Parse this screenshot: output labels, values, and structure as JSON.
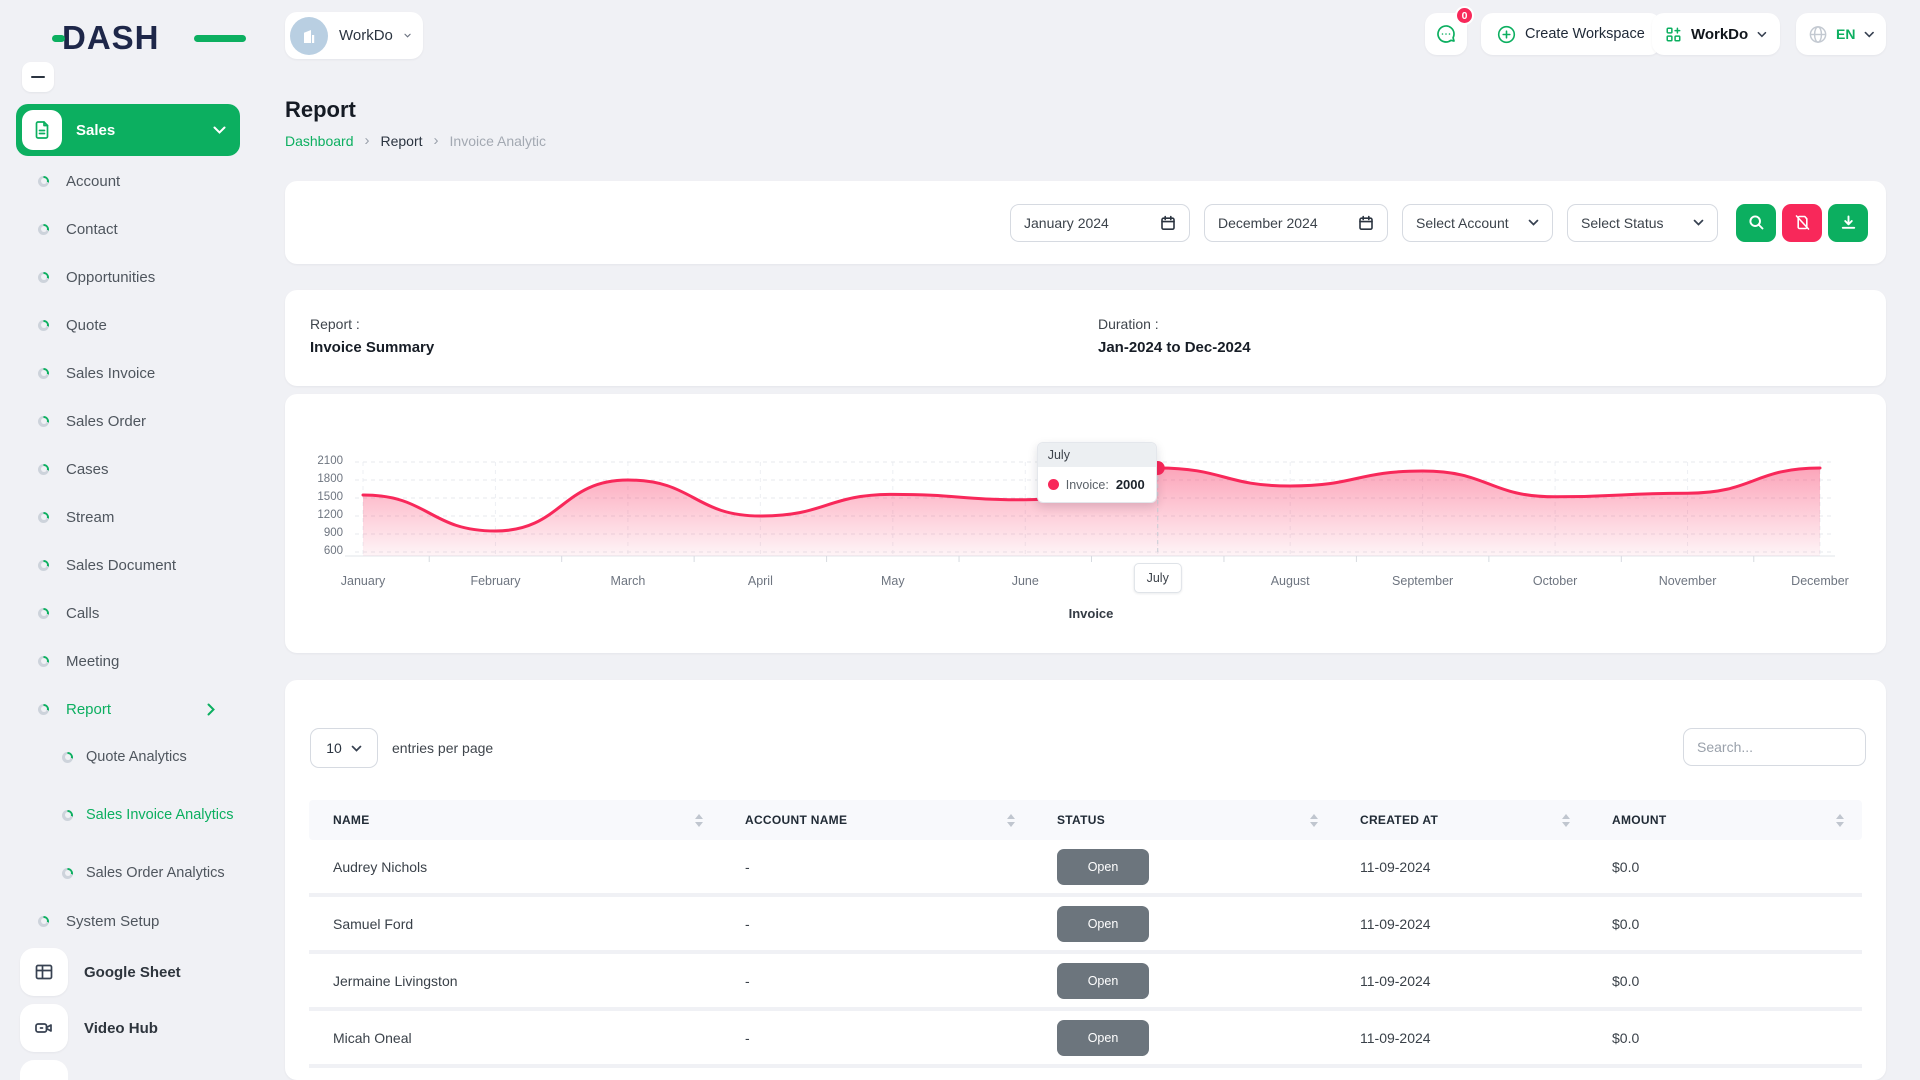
{
  "colors": {
    "primary": "#0caf60",
    "accent": "#f8285a",
    "badge_bg": "#6c757d"
  },
  "brand": {
    "logo_text": "DASH"
  },
  "topbar": {
    "workspace": {
      "name": "WorkDo",
      "avatar_icon": "building-icon"
    },
    "chat_badge": "0",
    "create_workspace_label": "Create Workspace",
    "apps_label": "WorkDo",
    "language": "EN"
  },
  "sidebar": {
    "group_label": "Sales",
    "menu": [
      {
        "label": "Account"
      },
      {
        "label": "Contact"
      },
      {
        "label": "Opportunities"
      },
      {
        "label": "Quote"
      },
      {
        "label": "Sales Invoice"
      },
      {
        "label": "Sales Order"
      },
      {
        "label": "Cases"
      },
      {
        "label": "Stream"
      },
      {
        "label": "Sales Document"
      },
      {
        "label": "Calls"
      },
      {
        "label": "Meeting"
      },
      {
        "label": "Report",
        "active": true
      }
    ],
    "report_submenu": [
      {
        "label": "Quote Analytics"
      },
      {
        "label": "Sales Invoice Analytics",
        "active": true
      },
      {
        "label": "Sales Order Analytics"
      }
    ],
    "system_setup_label": "System Setup",
    "shortcuts": [
      {
        "label": "Google Sheet",
        "icon": "sheet-icon"
      },
      {
        "label": "Video Hub",
        "icon": "video-icon"
      }
    ]
  },
  "page": {
    "title": "Report",
    "breadcrumb": {
      "home": "Dashboard",
      "mid": "Report",
      "current": "Invoice Analytic",
      "separator": "›"
    }
  },
  "filters": {
    "date_from": "January 2024",
    "date_to": "December 2024",
    "account_placeholder": "Select Account",
    "status_placeholder": "Select Status"
  },
  "summary": {
    "report_label": "Report :",
    "report_value": "Invoice Summary",
    "duration_label": "Duration :",
    "duration_value": "Jan-2024 to Dec-2024"
  },
  "chart_data": {
    "type": "area",
    "categories": [
      "January",
      "February",
      "March",
      "April",
      "May",
      "June",
      "July",
      "August",
      "September",
      "October",
      "November",
      "December"
    ],
    "series": [
      {
        "name": "Invoice",
        "values": [
          1550,
          950,
          1800,
          1200,
          1560,
          1470,
          2000,
          1700,
          1950,
          1520,
          1580,
          2000
        ]
      }
    ],
    "yticks": [
      600,
      900,
      1200,
      1500,
      1800,
      2100
    ],
    "ylim": [
      600,
      2100
    ],
    "grid": "dashed",
    "line_color": "#f8285a",
    "legend": "Invoice",
    "legend_position": "bottom",
    "highlight_index": 6,
    "tooltip": {
      "month": "July",
      "label": "Invoice:",
      "value": "2000"
    }
  },
  "table": {
    "entries_value": "10",
    "entries_label": "entries per page",
    "search_placeholder": "Search...",
    "columns": [
      "NAME",
      "ACCOUNT NAME",
      "STATUS",
      "CREATED AT",
      "AMOUNT"
    ],
    "rows": [
      {
        "name": "Audrey Nichols",
        "account": "-",
        "status": "Open",
        "created": "11-09-2024",
        "amount": "$0.0"
      },
      {
        "name": "Samuel Ford",
        "account": "-",
        "status": "Open",
        "created": "11-09-2024",
        "amount": "$0.0"
      },
      {
        "name": "Jermaine Livingston",
        "account": "-",
        "status": "Open",
        "created": "11-09-2024",
        "amount": "$0.0"
      },
      {
        "name": "Micah Oneal",
        "account": "-",
        "status": "Open",
        "created": "11-09-2024",
        "amount": "$0.0"
      }
    ]
  }
}
